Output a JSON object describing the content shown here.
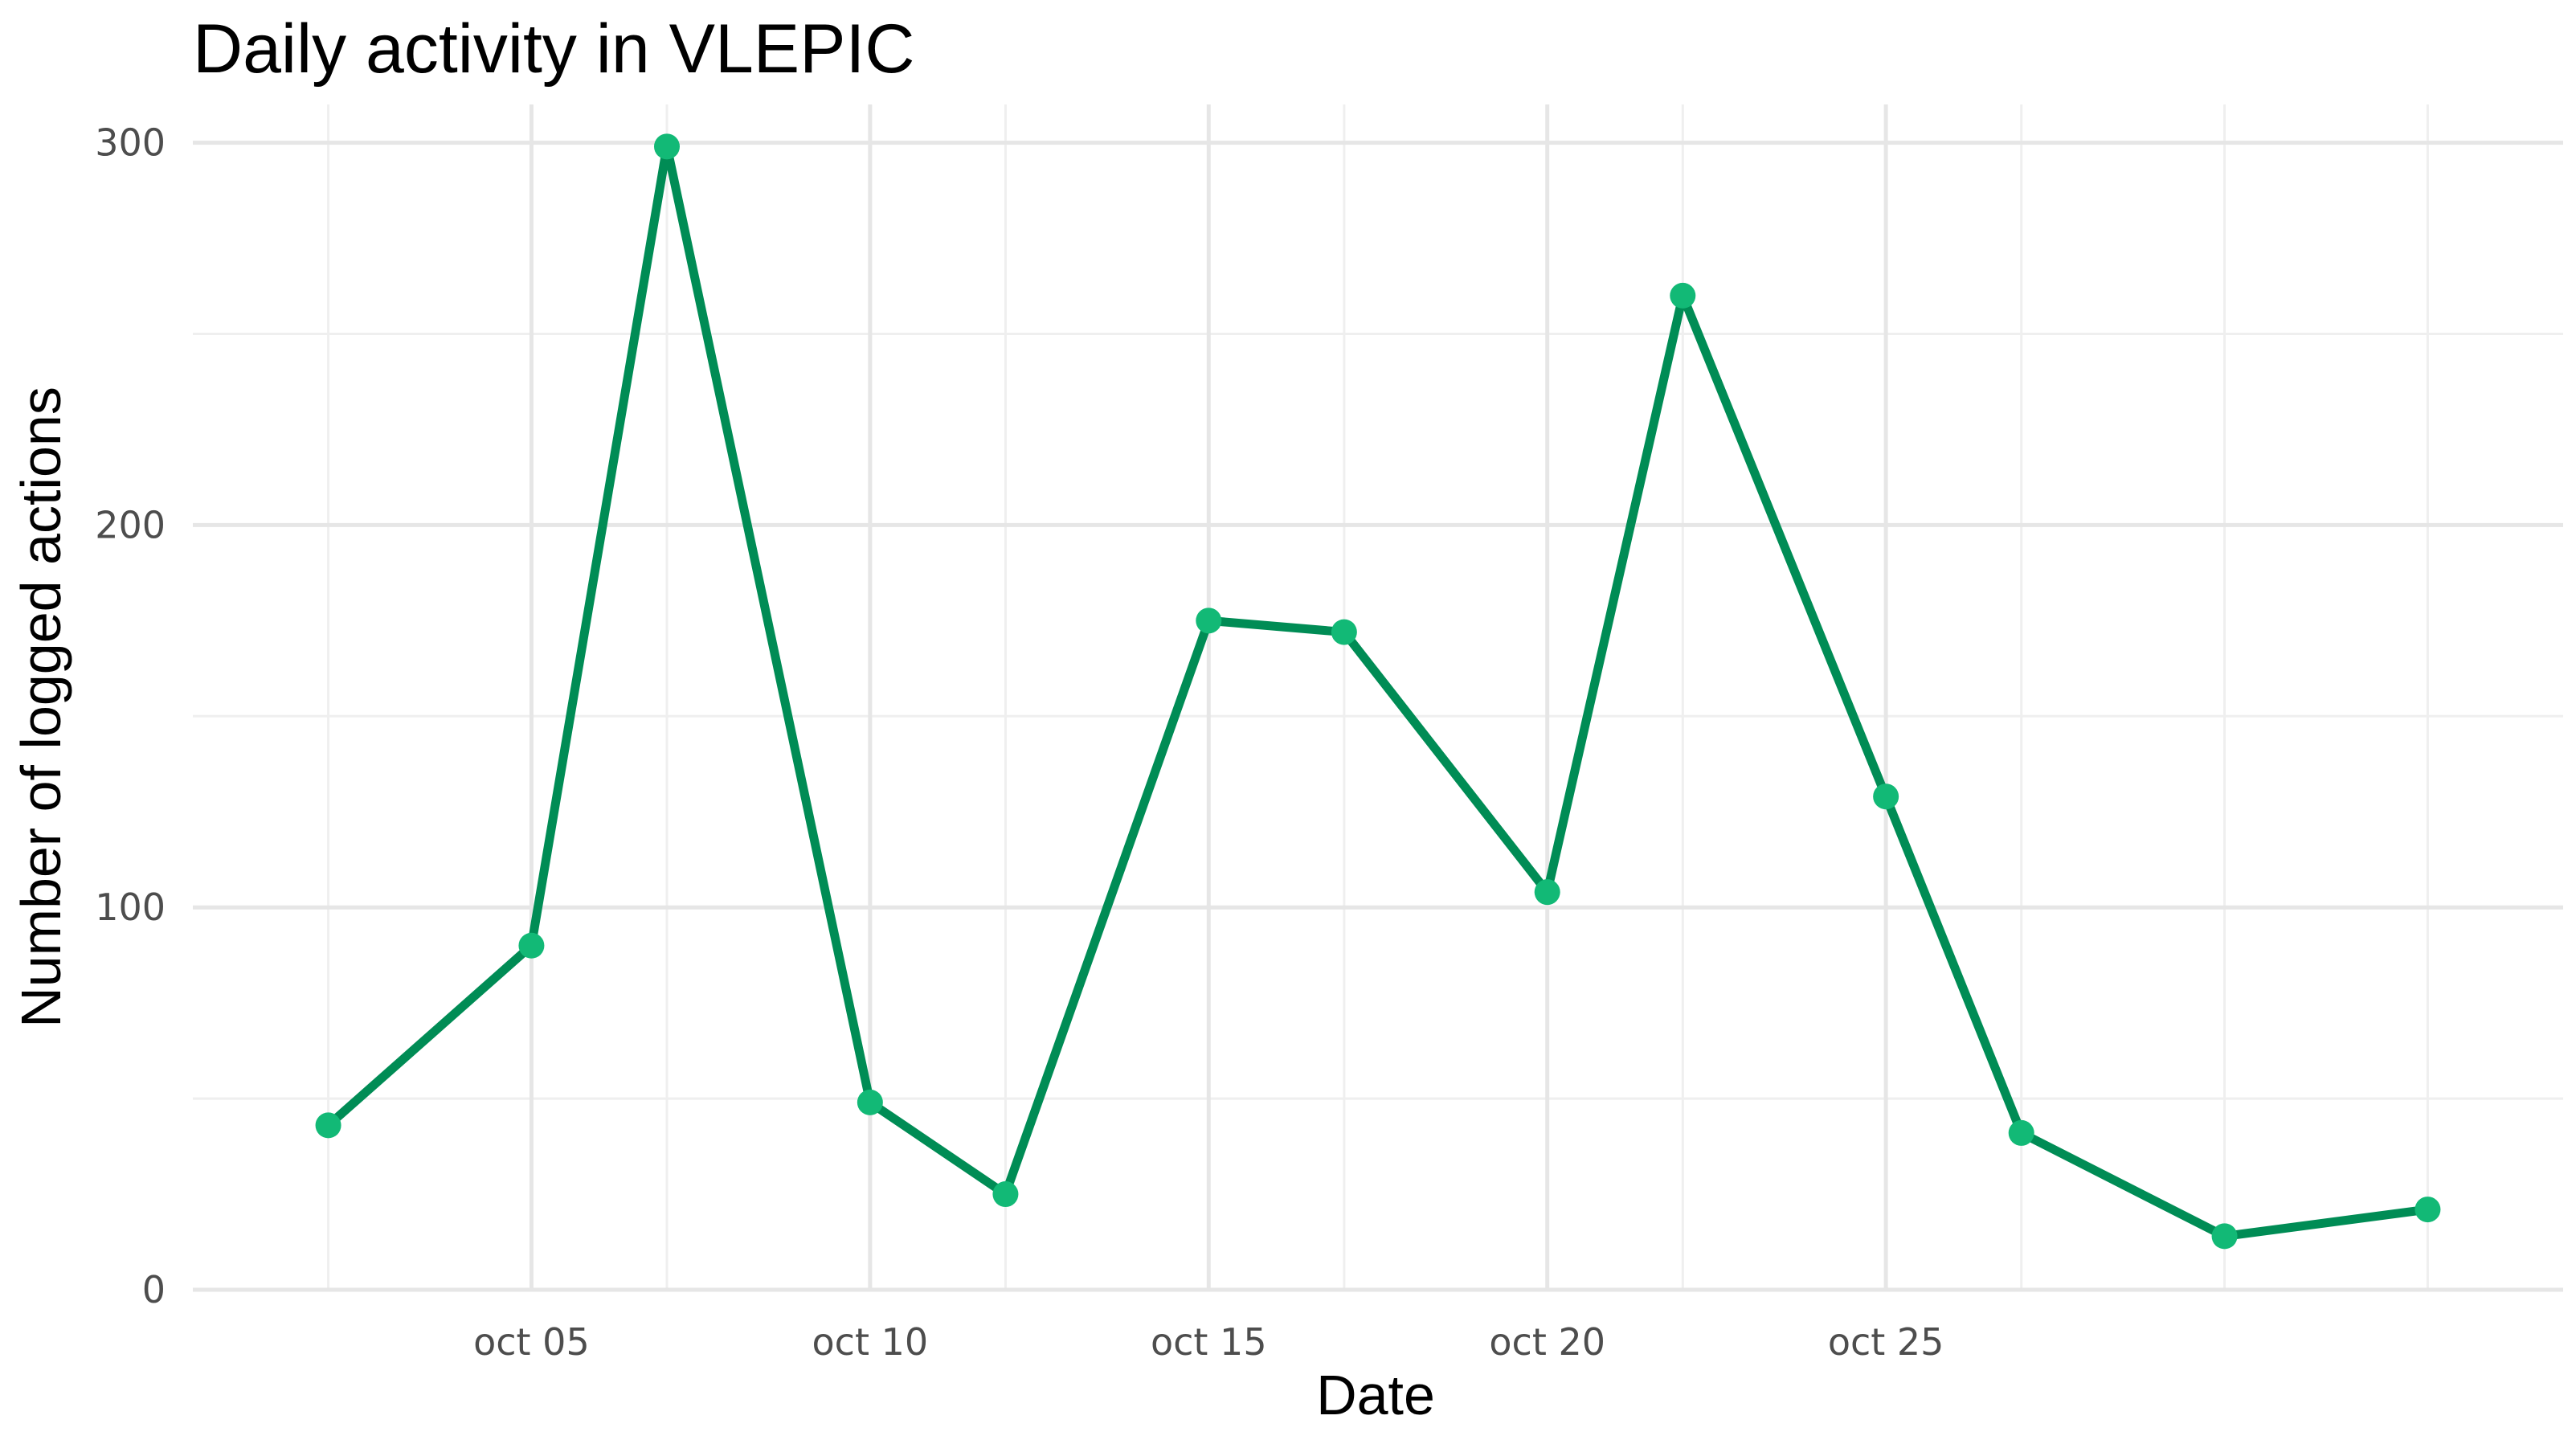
{
  "chart_data": {
    "type": "line",
    "title": "Daily activity in VLEPIC",
    "xlabel": "Date",
    "ylabel": "Number of logged actions",
    "x_major_ticks": [
      {
        "date": "2023-10-05",
        "label": "oct 05"
      },
      {
        "date": "2023-10-10",
        "label": "oct 10"
      },
      {
        "date": "2023-10-15",
        "label": "oct 15"
      },
      {
        "date": "2023-10-20",
        "label": "oct 20"
      },
      {
        "date": "2023-10-25",
        "label": "oct 25"
      }
    ],
    "x_minor_ticks": [
      "2023-10-02",
      "2023-10-07",
      "2023-10-12",
      "2023-10-17",
      "2023-10-22",
      "2023-10-27",
      "2023-10-30",
      "2023-11-02"
    ],
    "xlim": [
      "2023-09-30",
      "2023-11-04"
    ],
    "y_major_ticks": [
      0,
      100,
      200,
      300
    ],
    "y_minor_ticks": [
      50,
      150,
      250
    ],
    "ylim": [
      0,
      310
    ],
    "grid": true,
    "legend": "none",
    "line_color": "#008c55",
    "point_color": "#12b976",
    "points": [
      {
        "x": "2023-10-02",
        "y": 43
      },
      {
        "x": "2023-10-05",
        "y": 90
      },
      {
        "x": "2023-10-07",
        "y": 299
      },
      {
        "x": "2023-10-10",
        "y": 49
      },
      {
        "x": "2023-10-12",
        "y": 25
      },
      {
        "x": "2023-10-15",
        "y": 175
      },
      {
        "x": "2023-10-17",
        "y": 172
      },
      {
        "x": "2023-10-20",
        "y": 104
      },
      {
        "x": "2023-10-22",
        "y": 260
      },
      {
        "x": "2023-10-25",
        "y": 129
      },
      {
        "x": "2023-10-27",
        "y": 41
      },
      {
        "x": "2023-10-30",
        "y": 14
      },
      {
        "x": "2023-11-02",
        "y": 21
      }
    ]
  }
}
